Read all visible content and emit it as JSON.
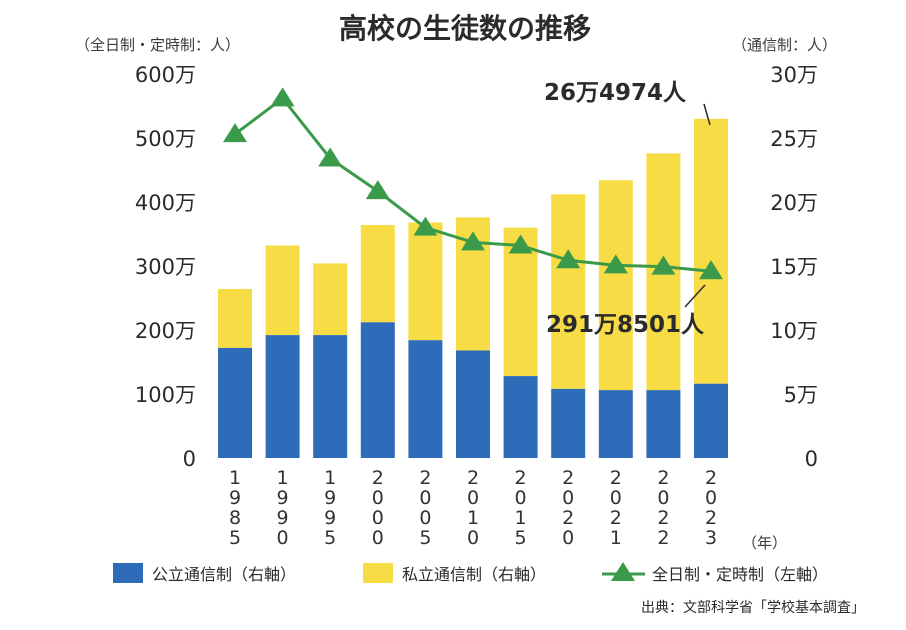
{
  "chart_data": {
    "type": "bar",
    "title": "高校の生徒数の推移",
    "left_axis_label": "（全日制・定時制：人）",
    "right_axis_label": "（通信制：人）",
    "x_unit_label": "（年）",
    "categories": [
      "1985",
      "1990",
      "1995",
      "2000",
      "2005",
      "2010",
      "2015",
      "2020",
      "2021",
      "2022",
      "2023"
    ],
    "left_ticks": [
      "0",
      "100万",
      "200万",
      "300万",
      "400万",
      "500万",
      "600万"
    ],
    "left_tick_values": [
      0,
      1000000,
      2000000,
      3000000,
      4000000,
      5000000,
      6000000
    ],
    "right_ticks": [
      "0",
      "5万",
      "10万",
      "15万",
      "20万",
      "25万",
      "30万"
    ],
    "right_tick_values": [
      0,
      50000,
      100000,
      150000,
      200000,
      250000,
      300000
    ],
    "left_ylim": [
      0,
      6000000
    ],
    "right_ylim": [
      0,
      300000
    ],
    "stacked": true,
    "series": [
      {
        "name": "公立通信制（右軸）",
        "type": "bar",
        "axis": "right",
        "color": "#2e6bb8",
        "values": [
          86000,
          96000,
          96000,
          106000,
          92000,
          84000,
          64000,
          54000,
          53000,
          53000,
          58000
        ]
      },
      {
        "name": "私立通信制（右軸）",
        "type": "bar",
        "axis": "right",
        "color": "#f7dc45",
        "values": [
          46000,
          70000,
          56000,
          76000,
          92000,
          104000,
          116000,
          152000,
          164000,
          185000,
          206974
        ]
      },
      {
        "name": "全日制・定時制（左軸）",
        "type": "line",
        "axis": "left",
        "marker": "triangle",
        "color": "#3a9a4a",
        "values": [
          5060000,
          5620000,
          4680000,
          4170000,
          3600000,
          3370000,
          3320000,
          3090000,
          3010000,
          2990000,
          2918501
        ]
      }
    ],
    "annotations": [
      {
        "text": "26万4974人",
        "target": "通信制合計 2023",
        "value": 264974
      },
      {
        "text": "291万8501人",
        "target": "全日制・定時制 2023",
        "value": 2918501
      }
    ],
    "legend_position": "bottom",
    "grid": false,
    "source": "出典：文部科学省「学校基本調査」"
  }
}
